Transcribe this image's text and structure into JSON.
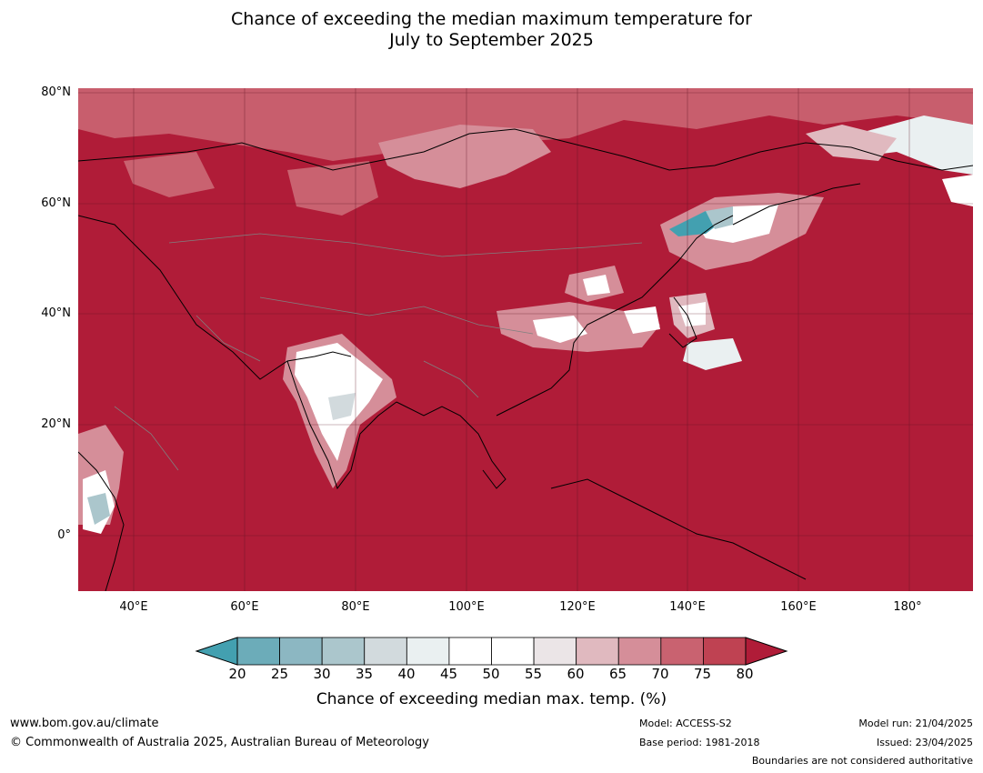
{
  "title": {
    "line1": "Chance of exceeding the median maximum temperature for",
    "line2": "July to September 2025"
  },
  "map": {
    "lat_labels": [
      "80°N",
      "60°N",
      "40°N",
      "20°N",
      "0°"
    ],
    "lon_labels": [
      "40°E",
      "60°E",
      "80°E",
      "100°E",
      "120°E",
      "140°E",
      "160°E",
      "180°"
    ],
    "lat_range": [
      -10,
      80
    ],
    "lon_range": [
      30,
      192
    ],
    "base_color": "#b01c38"
  },
  "colorbar": {
    "ticks": [
      "20",
      "25",
      "30",
      "35",
      "40",
      "45",
      "50",
      "55",
      "60",
      "65",
      "70",
      "75",
      "80"
    ],
    "colors": [
      "#6cacb9",
      "#8cb7c2",
      "#abc6cc",
      "#d2dadd",
      "#eaf0f1",
      "#ffffff",
      "#ffffff",
      "#ebe5e7",
      "#e0b9bf",
      "#d58e99",
      "#c96270",
      "#bf4252"
    ],
    "under_color": "#43a0b0",
    "over_color": "#b01c38",
    "label": "Chance of exceeding median max. temp. (%)"
  },
  "footer": {
    "website": "www.bom.gov.au/climate",
    "copyright": "© Commonwealth of Australia 2025, Australian Bureau of Meteorology",
    "model": "Model: ACCESS-S2",
    "base_period": "Base period: 1981-2018",
    "model_run": "Model run: 21/04/2025",
    "issued": "Issued: 23/04/2025",
    "disclaimer": "Boundaries are not considered authoritative"
  }
}
